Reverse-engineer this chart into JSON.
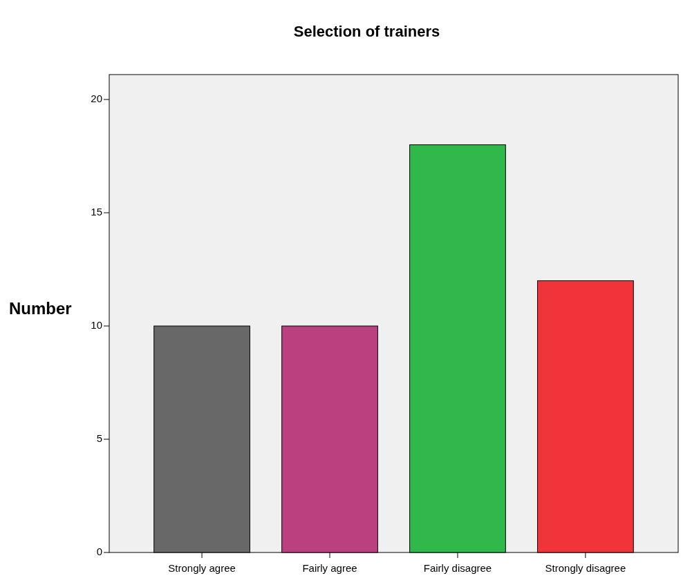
{
  "chart_data": {
    "type": "bar",
    "title": "Selection of trainers",
    "ylabel": "Number",
    "categories": [
      "Strongly agree",
      "Fairly agree",
      "Fairly disagree",
      "Strongly disagree"
    ],
    "values": [
      10,
      10,
      18,
      12
    ],
    "colors": [
      "#686868",
      "#bb4080",
      "#30b84a",
      "#f0343a"
    ],
    "ylim": [
      0,
      21.1
    ],
    "yticks": [
      0,
      5,
      10,
      15,
      20
    ]
  }
}
